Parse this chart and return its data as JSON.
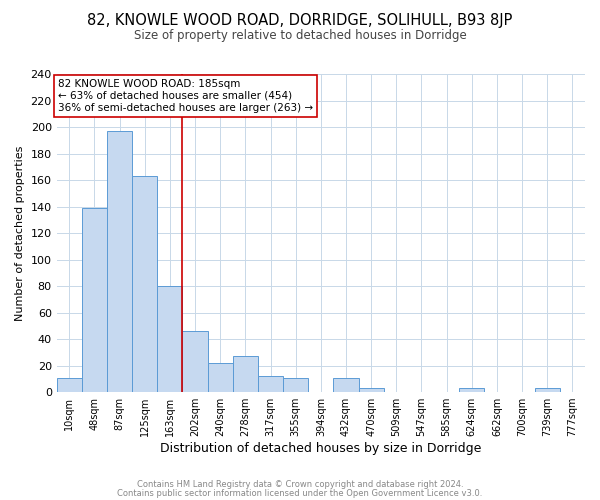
{
  "title": "82, KNOWLE WOOD ROAD, DORRIDGE, SOLIHULL, B93 8JP",
  "subtitle": "Size of property relative to detached houses in Dorridge",
  "xlabel": "Distribution of detached houses by size in Dorridge",
  "ylabel": "Number of detached properties",
  "bar_color": "#c6d9f0",
  "bar_edge_color": "#5b9bd5",
  "bin_labels": [
    "10sqm",
    "48sqm",
    "87sqm",
    "125sqm",
    "163sqm",
    "202sqm",
    "240sqm",
    "278sqm",
    "317sqm",
    "355sqm",
    "394sqm",
    "432sqm",
    "470sqm",
    "509sqm",
    "547sqm",
    "585sqm",
    "624sqm",
    "662sqm",
    "700sqm",
    "739sqm",
    "777sqm"
  ],
  "bar_heights": [
    11,
    139,
    197,
    163,
    80,
    46,
    22,
    27,
    12,
    11,
    0,
    11,
    3,
    0,
    0,
    0,
    3,
    0,
    0,
    3,
    0
  ],
  "vline_x": 4.5,
  "vline_color": "#cc0000",
  "annotation_line1": "82 KNOWLE WOOD ROAD: 185sqm",
  "annotation_line2": "← 63% of detached houses are smaller (454)",
  "annotation_line3": "36% of semi-detached houses are larger (263) →",
  "ylim": [
    0,
    240
  ],
  "yticks": [
    0,
    20,
    40,
    60,
    80,
    100,
    120,
    140,
    160,
    180,
    200,
    220,
    240
  ],
  "footer_line1": "Contains HM Land Registry data © Crown copyright and database right 2024.",
  "footer_line2": "Contains public sector information licensed under the Open Government Licence v3.0.",
  "background_color": "#ffffff",
  "grid_color": "#c8d8e8"
}
